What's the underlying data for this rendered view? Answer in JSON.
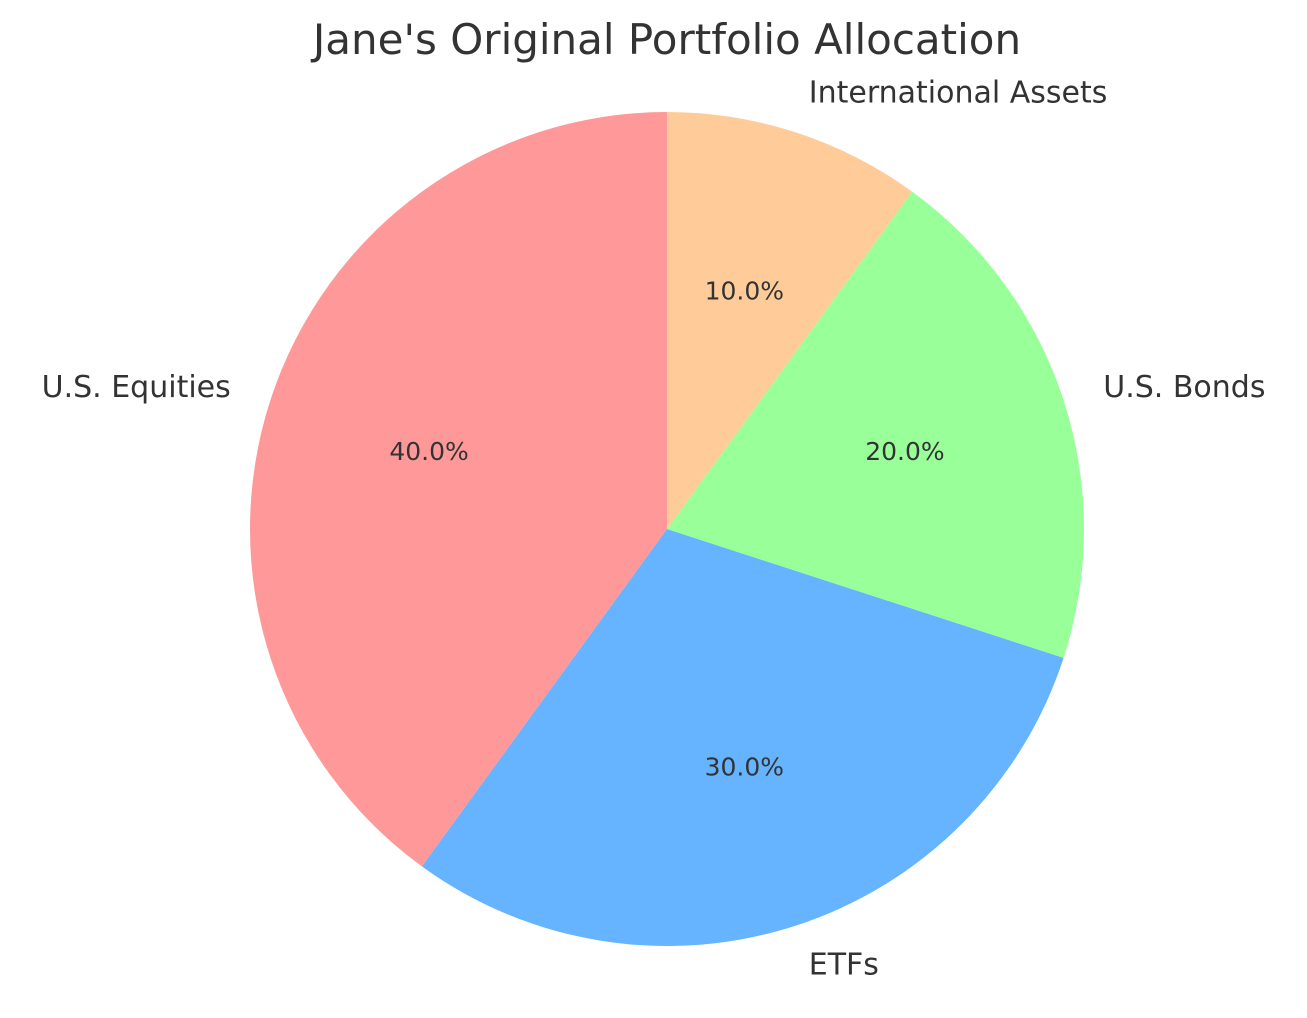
{
  "chart_data": {
    "type": "pie",
    "title": "Jane's Original Portfolio Allocation",
    "categories": [
      "U.S. Equities",
      "ETFs",
      "U.S. Bonds",
      "International Assets"
    ],
    "values": [
      40,
      30,
      20,
      10
    ],
    "percent_labels": [
      "40.0%",
      "30.0%",
      "20.0%",
      "10.0%"
    ],
    "colors": [
      "#ff9999",
      "#66b3ff",
      "#99ff99",
      "#ffcc99"
    ],
    "start_angle_deg": 90,
    "direction": "counterclockwise"
  }
}
